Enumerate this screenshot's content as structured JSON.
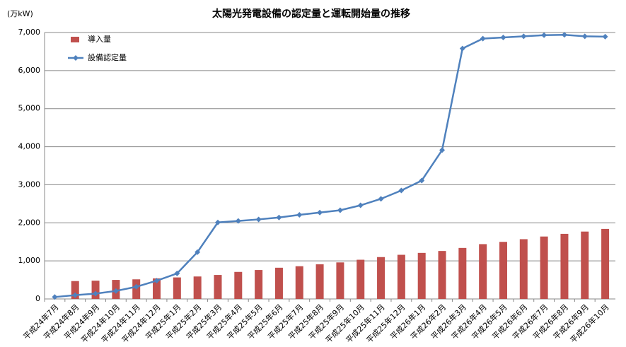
{
  "chart_data": {
    "type": "bar-line",
    "title": "太陽光発電設備の認定量と運転開始量の推移",
    "y_label": "(万kW)",
    "categories": [
      "平成24年7月",
      "平成24年8月",
      "平成24年9月",
      "平成24年10月",
      "平成24年11月",
      "平成24年12月",
      "平成25年1月",
      "平成25年2月",
      "平成25年3月",
      "平成25年4月",
      "平成25年5月",
      "平成25年6月",
      "平成25年7月",
      "平成25年8月",
      "平成25年9月",
      "平成25年10月",
      "平成25年11月",
      "平成25年12月",
      "平成26年1月",
      "平成26年2月",
      "平成26年3月",
      "平成26年4月",
      "平成26年5月",
      "平成26年6月",
      "平成26年7月",
      "平成26年8月",
      "平成26年9月",
      "平成26年10月"
    ],
    "series": [
      {
        "name": "導入量",
        "type": "bar",
        "color": "#c0504d",
        "values": [
          null,
          470,
          480,
          500,
          515,
          540,
          565,
          590,
          630,
          710,
          760,
          820,
          860,
          910,
          960,
          1030,
          1100,
          1160,
          1210,
          1260,
          1340,
          1440,
          1500,
          1570,
          1640,
          1710,
          1770,
          1840
        ]
      },
      {
        "name": "設備認定量",
        "type": "line",
        "color": "#4f81bd",
        "values": [
          50,
          100,
          140,
          210,
          320,
          480,
          670,
          1230,
          2010,
          2050,
          2090,
          2140,
          2210,
          2270,
          2330,
          2460,
          2630,
          2850,
          3110,
          3910,
          6580,
          6840,
          6870,
          6900,
          6930,
          6940,
          6900,
          6890
        ]
      }
    ],
    "ylim": [
      0,
      7000
    ],
    "yticks": [
      0,
      {
        "value": 1000,
        "label": "1,000"
      },
      {
        "value": 2000,
        "label": "2,000"
      },
      {
        "value": 3000,
        "label": "3,000"
      },
      {
        "value": 4000,
        "label": "4,000"
      },
      {
        "value": 5000,
        "label": "5,000"
      },
      {
        "value": 6000,
        "label": "6,000"
      },
      {
        "value": 7000,
        "label": "7,000"
      }
    ],
    "grid": true
  }
}
